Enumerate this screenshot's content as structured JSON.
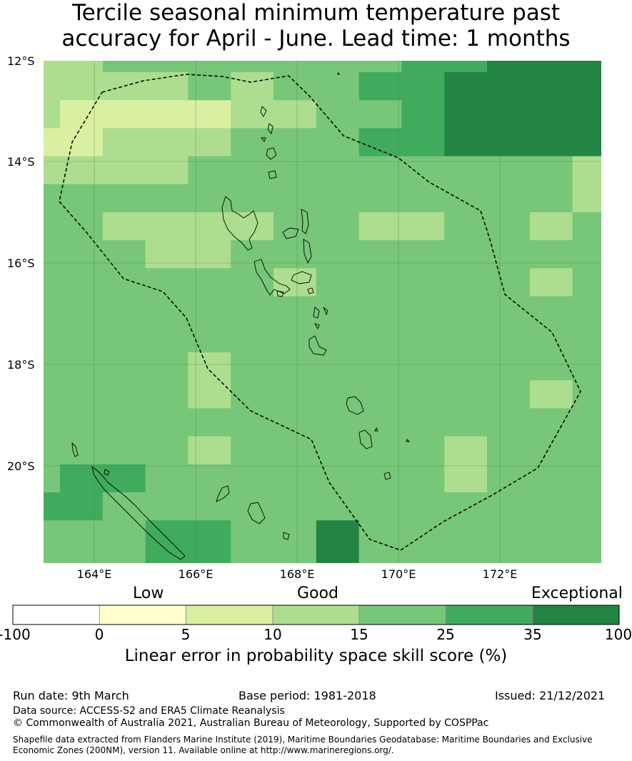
{
  "title": {
    "line1": "Tercile seasonal minimum temperature past",
    "line2": "accuracy for April - June. Lead time: 1 months"
  },
  "map": {
    "lat_labels": [
      "12°S",
      "14°S",
      "16°S",
      "18°S",
      "20°S"
    ],
    "lon_labels": [
      "164°E",
      "166°E",
      "168°E",
      "170°E",
      "172°E"
    ],
    "grid_rows": [
      "33444444455666",
      "33334344556666",
      "32222334456666",
      "22333444556666",
      "33334444444443",
      "44444444444443",
      "44333344334434",
      "44433444444444",
      "44444434444434",
      "44444444444444",
      "44444444444444",
      "44443444444444",
      "44443444444434",
      "44444444444444",
      "44443444443444",
      "45544444443444",
      "55444444444444",
      "44455446444444"
    ]
  },
  "colorbar": {
    "category_low": "Low",
    "category_good": "Good",
    "category_exceptional": "Exceptional",
    "ticks": [
      "-100",
      "0",
      "5",
      "10",
      "15",
      "25",
      "35",
      "100"
    ],
    "colors": [
      "#ffffff",
      "#ffffcc",
      "#d9f0a3",
      "#addd8e",
      "#78c679",
      "#41ab5d",
      "#238443"
    ],
    "title": "Linear error in probability space skill score (%)"
  },
  "footer": {
    "run_date": "Run date: 9th March",
    "base_period": "Base period: 1981-2018",
    "issued": "Issued: 21/12/2021",
    "data_source": "Data source: ACCESS-S2 and ERA5 Climate Reanalysis",
    "copyright": "© Commonwealth of Australia 2021, Australian Bureau of Meteorology, Supported by COSPPac",
    "shapefile_line1": "Shapefile data extracted from Flanders Marine Institute (2019), Maritime Boundaries Geodatabase: Maritime Boundaries and Exclusive",
    "shapefile_line2": "Economic Zones (200NM), version 11. Available online at http://www.marineregions.org/."
  }
}
